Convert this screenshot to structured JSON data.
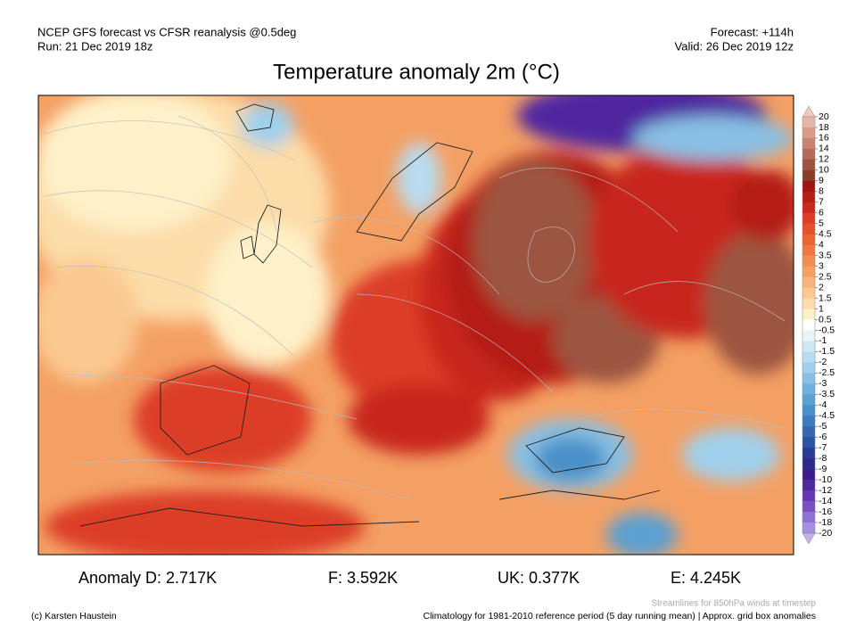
{
  "header": {
    "left": [
      "NCEP GFS forecast vs CFSR reanalysis @0.5deg",
      "Run: 21 Dec 2019 18z"
    ],
    "right": [
      "Forecast: +114h",
      "Valid: 26 Dec 2019 12z"
    ]
  },
  "title": "Temperature anomaly 2m (°C)",
  "colorbar": {
    "ticks": [
      20,
      18,
      16,
      14,
      12,
      10,
      9,
      8,
      7,
      6,
      5,
      4.5,
      4,
      3.5,
      3,
      2.5,
      2,
      1.5,
      1,
      0.5,
      -0.5,
      -1,
      -1.5,
      -2,
      -2.5,
      -3,
      -3.5,
      -4,
      -4.5,
      -5,
      -6,
      -7,
      -8,
      -9,
      -10,
      -12,
      -14,
      -16,
      -18,
      -20
    ],
    "colors": [
      "#f0c8c0",
      "#e8b4a8",
      "#d89c8c",
      "#c88470",
      "#b46c58",
      "#9c5440",
      "#8c3c28",
      "#a01414",
      "#b41e14",
      "#c8281e",
      "#dc3c28",
      "#e6502d",
      "#ec6432",
      "#f07840",
      "#f48c50",
      "#f4a064",
      "#f8b478",
      "#fac890",
      "#fcdca8",
      "#fef0c8",
      "#ffffff",
      "#e8f4fa",
      "#d0e8f4",
      "#b8dcf0",
      "#a0d0ec",
      "#88c0e4",
      "#70b0dc",
      "#5aa0d2",
      "#4890c8",
      "#3c7cbc",
      "#3468b0",
      "#2c54a4",
      "#283c98",
      "#2c288c",
      "#3c1c8c",
      "#5028a0",
      "#6438b4",
      "#7850c4",
      "#9070d4",
      "#a890e0",
      "#c4b0ec"
    ]
  },
  "anomalies": [
    "Anomaly D: 2.717K",
    "F: 3.592K",
    "UK: 0.377K",
    "E: 4.245K"
  ],
  "footer": {
    "streamlines": "Streamlines for 850hPa winds at timestep",
    "copyright": "(c) Karsten Haustein",
    "climatology": "Climatology for 1981-2010 reference period (5 day running mean) | Approx. grid box anomalies"
  }
}
